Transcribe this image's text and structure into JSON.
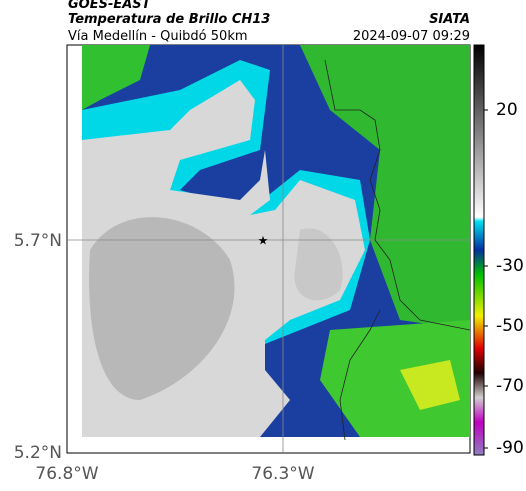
{
  "header": {
    "title": "GOES-EAST",
    "subtitle": "Temperatura de Brillo CH13",
    "location": "Vía Medellín - Quibdó 50km",
    "source": "SIATA",
    "datetime": "2024-09-07 09:29"
  },
  "map": {
    "lat_ticks": [
      "5.7°N",
      "5.2°N"
    ],
    "lon_ticks": [
      "76.8°W",
      "76.3°W"
    ]
  },
  "colorbar": {
    "ticks": [
      "20",
      "-30",
      "-50",
      "-70",
      "-90"
    ]
  }
}
